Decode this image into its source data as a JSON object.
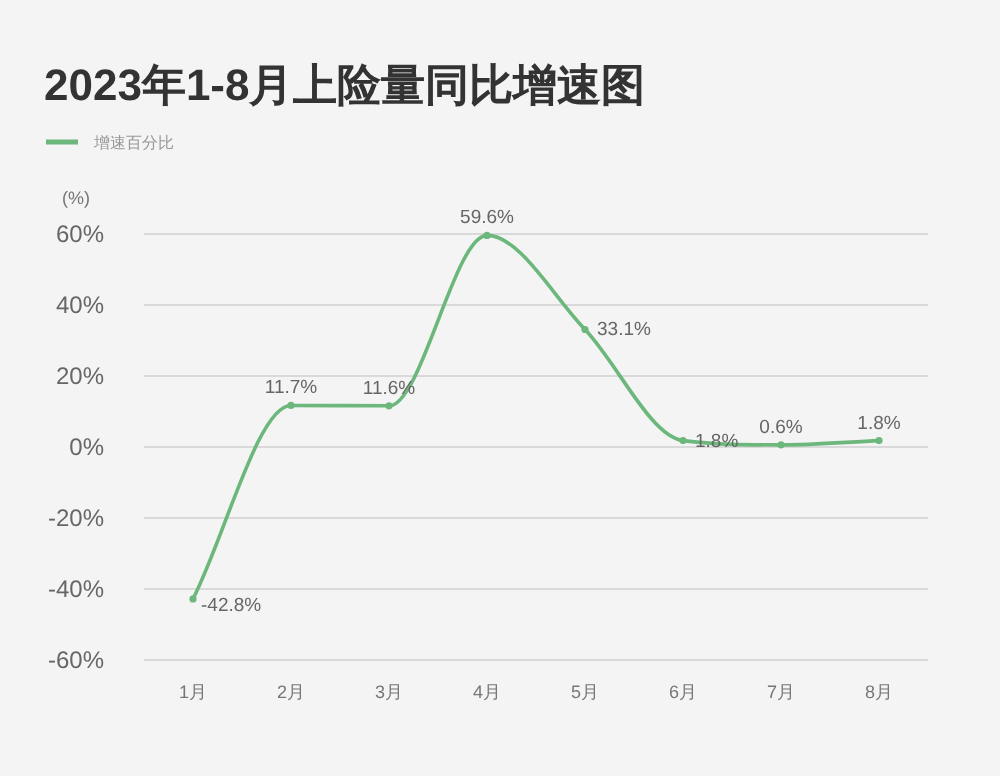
{
  "chart_data": {
    "type": "line",
    "title": "2023年1-8月上险量同比增速图",
    "ylabel": "(%)",
    "categories": [
      "1月",
      "2月",
      "3月",
      "4月",
      "5月",
      "6月",
      "7月",
      "8月"
    ],
    "series": [
      {
        "name": "增速百分比",
        "color": "#6cb77b",
        "values": [
          -42.8,
          11.7,
          11.6,
          59.6,
          33.1,
          1.8,
          0.6,
          1.8
        ],
        "value_labels": [
          "-42.8%",
          "11.7%",
          "11.6%",
          "59.6%",
          "33.1%",
          "1.8%",
          "0.6%",
          "1.8%"
        ]
      }
    ],
    "ylim": [
      -60,
      60
    ],
    "yticks": [
      {
        "value": 60,
        "label": "60%"
      },
      {
        "value": 40,
        "label": "40%"
      },
      {
        "value": 20,
        "label": "20%"
      },
      {
        "value": 0,
        "label": "0%"
      },
      {
        "value": -20,
        "label": "-20%"
      },
      {
        "value": -40,
        "label": "-40%"
      },
      {
        "value": -60,
        "label": "-60%"
      }
    ],
    "grid": "y",
    "legend": "top left",
    "marker": "circle",
    "line_style": "solid"
  }
}
